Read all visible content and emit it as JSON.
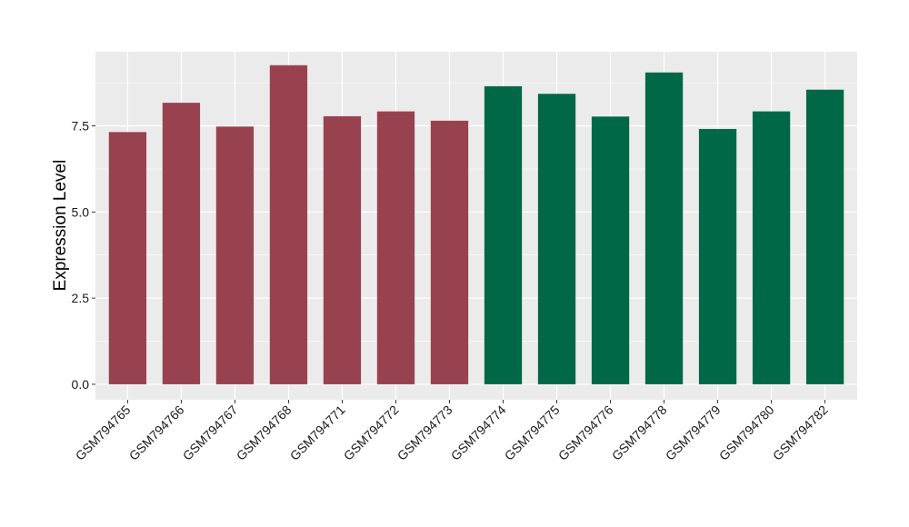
{
  "chart_data": {
    "type": "bar",
    "title": "",
    "xlabel": "",
    "ylabel": "Expression Level",
    "ylim": [
      -0.45,
      9.65
    ],
    "yticks": [
      0.0,
      2.5,
      5.0,
      7.5
    ],
    "ytick_labels": [
      "0.0",
      "2.5",
      "5.0",
      "7.5"
    ],
    "grid": true,
    "legend": "none",
    "categories": [
      "GSM794765",
      "GSM794766",
      "GSM794767",
      "GSM794768",
      "GSM794771",
      "GSM794772",
      "GSM794773",
      "GSM794774",
      "GSM794775",
      "GSM794776",
      "GSM794778",
      "GSM794779",
      "GSM794780",
      "GSM794782"
    ],
    "values": [
      7.32,
      8.17,
      7.48,
      9.26,
      7.78,
      7.92,
      7.65,
      8.65,
      8.43,
      7.77,
      9.05,
      7.41,
      7.92,
      8.55
    ],
    "bar_colors": [
      "#99424f",
      "#99424f",
      "#99424f",
      "#99424f",
      "#99424f",
      "#99424f",
      "#99424f",
      "#006847",
      "#006847",
      "#006847",
      "#006847",
      "#006847",
      "#006847",
      "#006847"
    ]
  },
  "colors": {
    "panel_background": "#ebebeb",
    "grid_major": "#ffffff",
    "group_1": "#99424f",
    "group_2": "#006847"
  }
}
